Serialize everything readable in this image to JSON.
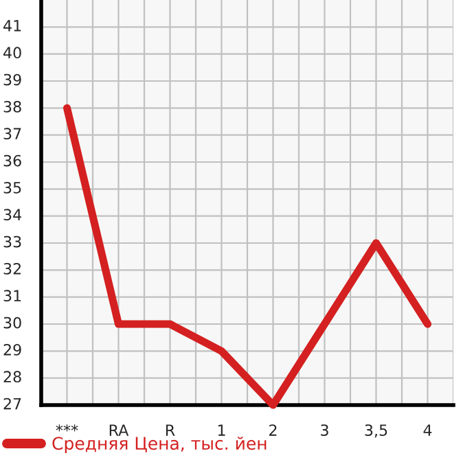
{
  "chart_data": {
    "type": "line",
    "categories": [
      "***",
      "RA",
      "R",
      "1",
      "2",
      "3",
      "3,5",
      "4"
    ],
    "series": [
      {
        "name": "Средняя Цена, тыс. йен",
        "color": "#d42020",
        "values": [
          38,
          30,
          30,
          29,
          27,
          30,
          33,
          30
        ]
      }
    ],
    "ylim": [
      27,
      42
    ],
    "yticks": [
      27,
      28,
      29,
      30,
      31,
      32,
      33,
      34,
      35,
      36,
      37,
      38,
      39,
      40,
      41
    ],
    "grid": true,
    "legend": "bottom left",
    "marker": "none",
    "line_style": "solid"
  }
}
